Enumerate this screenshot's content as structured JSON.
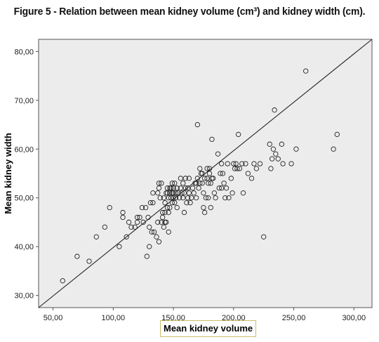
{
  "title": "Figure 5 - Relation between mean kidney volume (cm³) and kidney width (cm).",
  "chart_data": {
    "type": "scatter",
    "title": "Figure 5 - Relation between mean kidney volume (cm³) and kidney width (cm).",
    "xlabel": "Mean kidney volume",
    "ylabel": "Mean kidney width",
    "xlim": [
      38,
      315
    ],
    "ylim": [
      27.5,
      82.5
    ],
    "xticks": [
      "50,00",
      "100,00",
      "150,00",
      "200,00",
      "250,00",
      "300,00"
    ],
    "yticks": [
      "30,00",
      "40,00",
      "50,00",
      "60,00",
      "70,00",
      "80,00"
    ],
    "reference_line": [
      [
        38,
        27.5
      ],
      [
        315,
        82.5
      ]
    ],
    "grid": false,
    "colors": {
      "plot_background": "#ececec",
      "point_stroke": "#222222",
      "line": "#222222"
    },
    "points": [
      [
        58,
        33
      ],
      [
        70,
        38
      ],
      [
        80,
        37
      ],
      [
        86,
        42
      ],
      [
        93,
        44
      ],
      [
        97,
        48
      ],
      [
        105,
        40
      ],
      [
        108,
        46
      ],
      [
        108,
        47
      ],
      [
        111,
        42
      ],
      [
        113,
        45
      ],
      [
        115,
        44
      ],
      [
        118,
        44
      ],
      [
        120,
        45
      ],
      [
        120,
        46
      ],
      [
        122,
        46
      ],
      [
        124,
        48
      ],
      [
        125,
        45
      ],
      [
        127,
        48
      ],
      [
        128,
        38
      ],
      [
        129,
        46
      ],
      [
        130,
        40
      ],
      [
        130,
        44
      ],
      [
        131,
        49
      ],
      [
        132,
        43
      ],
      [
        133,
        51
      ],
      [
        133,
        49
      ],
      [
        134,
        43
      ],
      [
        136,
        42
      ],
      [
        137,
        45
      ],
      [
        138,
        41
      ],
      [
        137,
        51
      ],
      [
        138,
        53
      ],
      [
        138,
        52
      ],
      [
        139,
        50
      ],
      [
        140,
        53
      ],
      [
        140,
        45
      ],
      [
        141,
        46
      ],
      [
        141,
        47
      ],
      [
        142,
        44
      ],
      [
        142,
        50
      ],
      [
        143,
        49
      ],
      [
        143,
        45
      ],
      [
        143,
        47
      ],
      [
        144,
        51
      ],
      [
        144,
        45
      ],
      [
        145,
        48
      ],
      [
        145,
        51
      ],
      [
        145,
        52
      ],
      [
        146,
        43
      ],
      [
        146,
        50
      ],
      [
        146,
        47
      ],
      [
        147,
        52
      ],
      [
        147,
        51
      ],
      [
        147,
        48
      ],
      [
        148,
        52
      ],
      [
        148,
        50
      ],
      [
        149,
        53
      ],
      [
        149,
        49
      ],
      [
        149,
        51
      ],
      [
        150,
        50
      ],
      [
        150,
        52
      ],
      [
        150,
        51
      ],
      [
        151,
        53
      ],
      [
        151,
        49
      ],
      [
        152,
        50
      ],
      [
        152,
        51
      ],
      [
        153,
        52
      ],
      [
        153,
        48
      ],
      [
        154,
        51
      ],
      [
        155,
        50
      ],
      [
        156,
        54
      ],
      [
        156,
        52
      ],
      [
        157,
        51
      ],
      [
        158,
        50
      ],
      [
        158,
        53
      ],
      [
        159,
        47
      ],
      [
        159,
        51
      ],
      [
        160,
        52
      ],
      [
        160,
        54
      ],
      [
        161,
        49
      ],
      [
        162,
        50
      ],
      [
        162,
        52
      ],
      [
        163,
        54
      ],
      [
        163,
        51
      ],
      [
        164,
        49
      ],
      [
        165,
        50
      ],
      [
        166,
        52
      ],
      [
        167,
        51
      ],
      [
        168,
        53
      ],
      [
        169,
        53
      ],
      [
        169,
        50
      ],
      [
        170,
        54
      ],
      [
        170,
        65
      ],
      [
        171,
        52
      ],
      [
        172,
        56
      ],
      [
        172,
        53
      ],
      [
        173,
        55
      ],
      [
        174,
        55
      ],
      [
        174,
        53
      ],
      [
        175,
        51
      ],
      [
        175,
        48
      ],
      [
        176,
        54
      ],
      [
        176,
        47
      ],
      [
        177,
        50
      ],
      [
        178,
        54
      ],
      [
        178,
        56
      ],
      [
        179,
        53
      ],
      [
        179,
        50
      ],
      [
        180,
        55
      ],
      [
        180,
        56
      ],
      [
        181,
        53
      ],
      [
        181,
        48
      ],
      [
        182,
        54
      ],
      [
        182,
        62
      ],
      [
        183,
        54
      ],
      [
        184,
        51
      ],
      [
        185,
        50
      ],
      [
        187,
        59
      ],
      [
        188,
        52
      ],
      [
        189,
        55
      ],
      [
        190,
        52
      ],
      [
        190,
        57
      ],
      [
        191,
        55
      ],
      [
        192,
        53
      ],
      [
        193,
        50
      ],
      [
        194,
        52
      ],
      [
        195,
        57
      ],
      [
        196,
        50
      ],
      [
        198,
        54
      ],
      [
        199,
        51
      ],
      [
        200,
        57
      ],
      [
        201,
        56
      ],
      [
        202,
        57
      ],
      [
        203,
        56
      ],
      [
        204,
        63
      ],
      [
        205,
        56
      ],
      [
        207,
        57
      ],
      [
        208,
        51
      ],
      [
        210,
        57
      ],
      [
        212,
        55
      ],
      [
        215,
        54
      ],
      [
        217,
        57
      ],
      [
        219,
        56
      ],
      [
        222,
        57
      ],
      [
        225,
        42
      ],
      [
        230,
        61
      ],
      [
        231,
        56
      ],
      [
        232,
        58
      ],
      [
        233,
        60
      ],
      [
        234,
        68
      ],
      [
        235,
        59
      ],
      [
        237,
        58
      ],
      [
        240,
        61
      ],
      [
        241,
        57
      ],
      [
        248,
        57
      ],
      [
        252,
        60
      ],
      [
        260,
        76
      ],
      [
        283,
        60
      ],
      [
        286,
        63
      ]
    ]
  }
}
